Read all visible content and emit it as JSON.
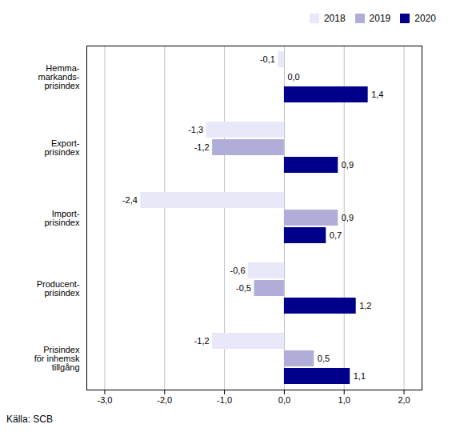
{
  "chart_data": {
    "type": "bar",
    "orientation": "horizontal",
    "categories": [
      "Hemma-\nmarkands-\nprisindex",
      "Export-\nprisindex",
      "Import-\nprisindex",
      "Producent-\nprisindex",
      "Prisindex\nför inhemsk\ntillgång"
    ],
    "series": [
      {
        "name": "2018",
        "color": "#e8e8f8",
        "values": [
          -0.1,
          -1.3,
          -2.4,
          -0.6,
          -1.2
        ],
        "value_labels": [
          "-0,1",
          "-1,3",
          "-2,4",
          "-0,6",
          "-1,2"
        ]
      },
      {
        "name": "2019",
        "color": "#b0aed8",
        "values": [
          0.0,
          -1.2,
          0.9,
          -0.5,
          0.5
        ],
        "value_labels": [
          "0,0",
          "-1,2",
          "0,9",
          "-0,5",
          "0,5"
        ]
      },
      {
        "name": "2020",
        "color": "#00008b",
        "values": [
          1.4,
          0.9,
          0.7,
          1.2,
          1.1
        ],
        "value_labels": [
          "1,4",
          "0,9",
          "0,7",
          "1,2",
          "1,1"
        ]
      }
    ],
    "xlim": [
      -3.3,
      2.3
    ],
    "xticks": [
      {
        "value": -3.0,
        "label": "-3,0"
      },
      {
        "value": -2.0,
        "label": "-2,0"
      },
      {
        "value": -1.0,
        "label": "-1,0"
      },
      {
        "value": 0.0,
        "label": "0,0"
      },
      {
        "value": 1.0,
        "label": "1,0"
      },
      {
        "value": 2.0,
        "label": "2,0"
      }
    ],
    "grid": true,
    "legend": "upper right",
    "data_labels": true,
    "caption": "Källa: SCB"
  }
}
